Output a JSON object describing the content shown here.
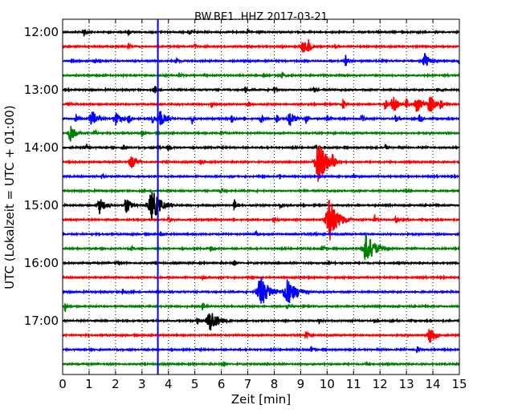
{
  "chart_data": {
    "type": "line",
    "title": "BW.BE1..HHZ 2017-03-21",
    "xlabel": "Zeit  [min]",
    "ylabel": "UTC (Lokalzeit = UTC + 01:00)",
    "xlim": [
      0,
      15
    ],
    "x_ticks": [
      "0",
      "1",
      "2",
      "3",
      "4",
      "5",
      "6",
      "7",
      "8",
      "9",
      "10",
      "11",
      "12",
      "13",
      "14",
      "15"
    ],
    "y_tick_labels": [
      "12:00",
      "13:00",
      "14:00",
      "15:00",
      "16:00",
      "17:00"
    ],
    "y_tick_rows": [
      0,
      4,
      8,
      12,
      16,
      20
    ],
    "grid": "vertical dotted",
    "marker_vline_min": 3.6,
    "series_colors": [
      "#000000",
      "#ff0000",
      "#0000ff",
      "#008000"
    ],
    "series": [
      {
        "start": "12:00",
        "events": [
          [
            0.8,
            0.5
          ],
          [
            2.5,
            0.25
          ],
          [
            4.8,
            0.25
          ],
          [
            7.0,
            0.25
          ]
        ]
      },
      {
        "start": "12:15",
        "events": [
          [
            2.5,
            0.35
          ],
          [
            5.0,
            0.25
          ],
          [
            9.1,
            0.7
          ],
          [
            9.3,
            0.5
          ],
          [
            10.3,
            0.25
          ]
        ]
      },
      {
        "start": "12:30",
        "events": [
          [
            1.2,
            0.25
          ],
          [
            4.3,
            0.3
          ],
          [
            10.7,
            0.6
          ],
          [
            13.7,
            0.8
          ],
          [
            15.0,
            0.3
          ]
        ]
      },
      {
        "start": "12:45",
        "events": [
          [
            4.4,
            0.25
          ],
          [
            7.6,
            0.25
          ],
          [
            8.3,
            0.3
          ]
        ]
      },
      {
        "start": "13:00",
        "events": [
          [
            3.5,
            0.4
          ],
          [
            6.9,
            0.3
          ],
          [
            8.0,
            0.35
          ],
          [
            9.5,
            0.3
          ],
          [
            14.2,
            0.35
          ]
        ]
      },
      {
        "start": "13:15",
        "events": [
          [
            0.2,
            0.25
          ],
          [
            5.6,
            0.45
          ],
          [
            7.0,
            0.3
          ],
          [
            10.6,
            0.5
          ],
          [
            12.2,
            0.6
          ],
          [
            12.5,
            0.85
          ],
          [
            13.0,
            0.6
          ],
          [
            13.4,
            0.9
          ],
          [
            13.9,
            1.0
          ],
          [
            14.3,
            0.6
          ]
        ]
      },
      {
        "start": "13:30",
        "events": [
          [
            0.5,
            0.5
          ],
          [
            1.1,
            0.95
          ],
          [
            2.0,
            0.7
          ],
          [
            2.5,
            0.6
          ],
          [
            3.4,
            0.55
          ],
          [
            3.7,
            0.95
          ],
          [
            4.9,
            0.6
          ],
          [
            6.4,
            0.55
          ],
          [
            7.5,
            0.5
          ],
          [
            8.1,
            0.55
          ],
          [
            8.6,
            0.8
          ],
          [
            9.2,
            0.5
          ],
          [
            10.0,
            0.45
          ],
          [
            11.3,
            0.5
          ],
          [
            12.6,
            0.45
          ],
          [
            13.5,
            0.55
          ]
        ]
      },
      {
        "start": "13:45",
        "events": [
          [
            0.3,
            0.9
          ],
          [
            1.2,
            0.35
          ],
          [
            3.0,
            0.4
          ],
          [
            6.0,
            0.3
          ]
        ]
      },
      {
        "start": "14:00",
        "events": [
          [
            0.9,
            0.3
          ],
          [
            2.3,
            0.25
          ],
          [
            3.6,
            0.35
          ],
          [
            4.0,
            0.35
          ],
          [
            9.6,
            0.3
          ],
          [
            12.2,
            0.35
          ]
        ]
      },
      {
        "start": "14:15",
        "events": [
          [
            2.6,
            0.7
          ],
          [
            5.2,
            0.3
          ],
          [
            9.7,
            2.3
          ],
          [
            10.2,
            0.5
          ]
        ]
      },
      {
        "start": "14:30",
        "events": [
          [
            1.5,
            0.25
          ],
          [
            8.2,
            0.25
          ],
          [
            11.0,
            0.25
          ]
        ]
      },
      {
        "start": "14:45",
        "events": [
          [
            6.0,
            0.25
          ],
          [
            13.0,
            0.25
          ]
        ]
      },
      {
        "start": "15:00",
        "events": [
          [
            1.4,
            0.9
          ],
          [
            2.4,
            0.8
          ],
          [
            3.4,
            1.6
          ],
          [
            6.5,
            0.6
          ],
          [
            8.2,
            0.35
          ]
        ]
      },
      {
        "start": "15:15",
        "events": [
          [
            4.0,
            0.25
          ],
          [
            8.0,
            0.35
          ],
          [
            10.1,
            2.2
          ],
          [
            11.8,
            0.4
          ],
          [
            12.6,
            0.35
          ]
        ]
      },
      {
        "start": "15:30",
        "events": [
          [
            3.7,
            0.3
          ],
          [
            7.3,
            0.25
          ],
          [
            9.5,
            0.25
          ]
        ]
      },
      {
        "start": "15:45",
        "events": [
          [
            2.6,
            0.25
          ],
          [
            5.6,
            0.3
          ],
          [
            9.8,
            0.3
          ],
          [
            11.5,
            1.6
          ]
        ]
      },
      {
        "start": "16:00",
        "events": [
          [
            2.0,
            0.25
          ],
          [
            6.5,
            0.3
          ],
          [
            10.0,
            0.25
          ]
        ]
      },
      {
        "start": "16:15",
        "events": [
          [
            5.3,
            0.25
          ]
        ]
      },
      {
        "start": "16:30",
        "events": [
          [
            2.3,
            0.5
          ],
          [
            7.5,
            1.6
          ],
          [
            8.5,
            1.4
          ],
          [
            8.9,
            0.3
          ]
        ]
      },
      {
        "start": "16:45",
        "events": [
          [
            0.1,
            0.6
          ],
          [
            5.3,
            0.4
          ],
          [
            8.5,
            0.25
          ]
        ]
      },
      {
        "start": "17:00",
        "events": [
          [
            5.1,
            0.4
          ],
          [
            5.6,
            1.1
          ],
          [
            9.7,
            0.3
          ],
          [
            11.8,
            0.25
          ]
        ]
      },
      {
        "start": "17:15",
        "events": [
          [
            9.2,
            0.4
          ],
          [
            13.9,
            1.0
          ]
        ]
      },
      {
        "start": "17:30",
        "events": [
          [
            9.4,
            0.35
          ],
          [
            13.4,
            0.35
          ]
        ]
      },
      {
        "start": "17:45",
        "events": [
          [
            6.1,
            0.3
          ],
          [
            11.5,
            0.25
          ]
        ]
      }
    ]
  }
}
